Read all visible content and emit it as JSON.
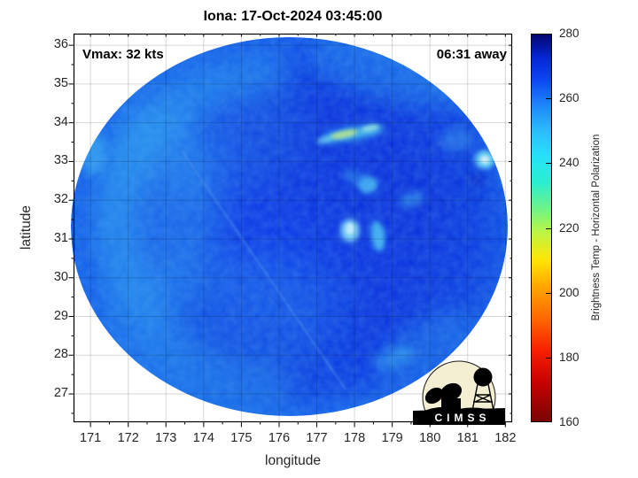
{
  "title": "Iona: 17-Oct-2024 03:45:00",
  "annotations": {
    "vmax": "Vmax: 32 kts",
    "eta": "06:31 away"
  },
  "axes": {
    "xlabel": "longitude",
    "ylabel": "latitude"
  },
  "logo": {
    "text": "CIMSS"
  },
  "chart_data": {
    "type": "heatmap",
    "title": "Iona: 17-Oct-2024 03:45:00",
    "xlabel": "longitude",
    "ylabel": "latitude",
    "xlim": [
      170.55,
      182.18
    ],
    "ylim": [
      26.27,
      36.3
    ],
    "x_ticks": [
      171,
      172,
      173,
      174,
      175,
      176,
      177,
      178,
      179,
      180,
      181,
      182
    ],
    "y_ticks": [
      27,
      28,
      29,
      30,
      31,
      32,
      33,
      34,
      35,
      36
    ],
    "grid": true,
    "annotations": [
      {
        "text": "Vmax: 32 kts",
        "position": "top-left"
      },
      {
        "text": "06:31 away",
        "position": "top-right"
      }
    ],
    "colorbar": {
      "label": "Brightness Temp - Horizontal Polarization",
      "range": [
        160,
        280
      ],
      "ticks": [
        160,
        180,
        200,
        220,
        240,
        260,
        280
      ],
      "inner_ticks": [
        180,
        200,
        220,
        240,
        260
      ],
      "stops": [
        [
          160,
          "#7a0403"
        ],
        [
          172,
          "#c70101"
        ],
        [
          182,
          "#f81e00"
        ],
        [
          192,
          "#ff6800"
        ],
        [
          202,
          "#ffa800"
        ],
        [
          210,
          "#ffe603"
        ],
        [
          218,
          "#c3f43e"
        ],
        [
          226,
          "#6ef389"
        ],
        [
          234,
          "#2af0cf"
        ],
        [
          242,
          "#26e2f8"
        ],
        [
          250,
          "#2bbdfb"
        ],
        [
          258,
          "#1f86fb"
        ],
        [
          266,
          "#0c46f2"
        ],
        [
          273,
          "#0524d2"
        ],
        [
          280,
          "#03066e"
        ]
      ]
    },
    "swath": {
      "center_lon": 176.3,
      "center_lat": 31.32,
      "radius_lon_deg": 5.79,
      "radius_lat_deg": 4.89,
      "mean_brightness_temp_K": 260
    },
    "features": [
      {
        "name": "convective-streak-glow",
        "lon": 177.95,
        "lat": 33.72,
        "rx_deg": 0.85,
        "ry_deg": 0.16,
        "rot": -10,
        "color": "#4fd9f2",
        "opacity": 0.85,
        "blur": 4
      },
      {
        "name": "convective-streak-core",
        "lon": 177.72,
        "lat": 33.7,
        "rx_deg": 0.38,
        "ry_deg": 0.09,
        "rot": -12,
        "color": "#cdf07a",
        "opacity": 0.9,
        "blur": 2
      },
      {
        "name": "convective-streak-core2",
        "lon": 178.42,
        "lat": 33.86,
        "rx_deg": 0.24,
        "ry_deg": 0.08,
        "rot": -12,
        "color": "#a8f2e0",
        "opacity": 0.85,
        "blur": 2
      },
      {
        "name": "streak-west-dot",
        "lon": 177.2,
        "lat": 33.55,
        "rx_deg": 0.2,
        "ry_deg": 0.08,
        "rot": -10,
        "color": "#7fe8f0",
        "opacity": 0.6,
        "blur": 2
      },
      {
        "name": "edge-bright-cell",
        "lon": 181.45,
        "lat": 33.05,
        "rx_deg": 0.26,
        "ry_deg": 0.24,
        "rot": 0,
        "color": "#7deef8",
        "opacity": 0.9,
        "blur": 3
      },
      {
        "name": "edge-bright-cell-core",
        "lon": 181.45,
        "lat": 33.05,
        "rx_deg": 0.12,
        "ry_deg": 0.1,
        "rot": 0,
        "color": "#ecfffa",
        "opacity": 0.95,
        "blur": 1.5
      },
      {
        "name": "cell-mid",
        "lon": 178.35,
        "lat": 32.4,
        "rx_deg": 0.26,
        "ry_deg": 0.22,
        "rot": 0,
        "color": "#55d5f6",
        "opacity": 0.75,
        "blur": 3
      },
      {
        "name": "cell-mid-companion",
        "lon": 178.0,
        "lat": 32.6,
        "rx_deg": 0.3,
        "ry_deg": 0.18,
        "rot": 20,
        "color": "#2f95f0",
        "opacity": 0.5,
        "blur": 4
      },
      {
        "name": "cell-center-bright",
        "lon": 177.88,
        "lat": 31.22,
        "rx_deg": 0.26,
        "ry_deg": 0.3,
        "rot": 0,
        "color": "#8fecfa",
        "opacity": 0.85,
        "blur": 3
      },
      {
        "name": "cell-center-bright-core",
        "lon": 177.88,
        "lat": 31.26,
        "rx_deg": 0.12,
        "ry_deg": 0.15,
        "rot": 0,
        "color": "#dcfdff",
        "opacity": 0.9,
        "blur": 1.5
      },
      {
        "name": "cell-center-east",
        "lon": 178.62,
        "lat": 31.08,
        "rx_deg": 0.18,
        "ry_deg": 0.4,
        "rot": -8,
        "color": "#52d8f7",
        "opacity": 0.8,
        "blur": 3
      },
      {
        "name": "light-patch-ne",
        "lon": 180.7,
        "lat": 33.55,
        "rx_deg": 0.45,
        "ry_deg": 0.3,
        "rot": 0,
        "color": "#3a97f0",
        "opacity": 0.5,
        "blur": 5
      },
      {
        "name": "light-patch-e",
        "lon": 179.5,
        "lat": 32.02,
        "rx_deg": 0.34,
        "ry_deg": 0.18,
        "rot": -15,
        "color": "#3fb8f0",
        "opacity": 0.5,
        "blur": 4
      },
      {
        "name": "light-patch-se",
        "lon": 179.05,
        "lat": 27.95,
        "rx_deg": 0.55,
        "ry_deg": 0.26,
        "rot": -20,
        "color": "#38a8f0",
        "opacity": 0.5,
        "blur": 5
      },
      {
        "name": "west-rim-bright",
        "lon": 171.05,
        "lat": 33.2,
        "rx_deg": 0.35,
        "ry_deg": 0.55,
        "rot": 0,
        "color": "#45c8f5",
        "opacity": 0.55,
        "blur": 6
      },
      {
        "name": "dark-notch-e",
        "lon": 181.25,
        "lat": 32.55,
        "rx_deg": 0.22,
        "ry_deg": 0.16,
        "rot": 0,
        "color": "#0a1eb4",
        "opacity": 0.45,
        "blur": 4
      }
    ]
  }
}
